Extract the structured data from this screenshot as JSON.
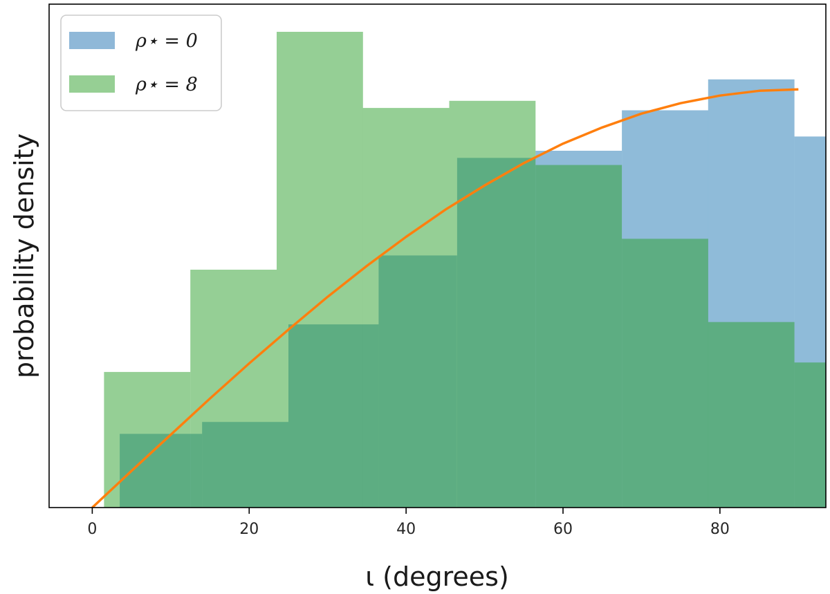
{
  "chart_data": {
    "type": "bar",
    "xlabel": "ι (degrees)",
    "ylabel": "probability density",
    "xlim": [
      -5.5,
      93.5
    ],
    "ylim": [
      0,
      1.0
    ],
    "xticks": [
      0,
      20,
      40,
      60,
      80
    ],
    "yticks_shown": false,
    "grid": false,
    "legend": {
      "placement": "top-left",
      "entries": [
        {
          "label": "ρ⋆ = 0",
          "color": "#8fb8d8"
        },
        {
          "label": "ρ⋆ = 8",
          "color": "#96cf94"
        }
      ]
    },
    "series": [
      {
        "name": "ρ⋆ = 0",
        "kind": "histogram",
        "color": "#1f77b4",
        "bins": [
          {
            "x0": 3.5,
            "x1": 14.0,
            "density": 0.155
          },
          {
            "x0": 14.0,
            "x1": 25.0,
            "density": 0.18
          },
          {
            "x0": 25.0,
            "x1": 36.5,
            "density": 0.385
          },
          {
            "x0": 36.5,
            "x1": 46.5,
            "density": 0.53
          },
          {
            "x0": 46.5,
            "x1": 56.5,
            "density": 0.735
          },
          {
            "x0": 56.5,
            "x1": 67.5,
            "density": 0.75
          },
          {
            "x0": 67.5,
            "x1": 78.5,
            "density": 0.835
          },
          {
            "x0": 78.5,
            "x1": 89.5,
            "density": 0.9
          },
          {
            "x0": 89.5,
            "x1": 100.5,
            "density": 0.78
          }
        ]
      },
      {
        "name": "ρ⋆ = 8",
        "kind": "histogram",
        "color": "#2ca02c",
        "bins": [
          {
            "x0": 1.5,
            "x1": 12.5,
            "density": 0.285
          },
          {
            "x0": 12.5,
            "x1": 23.5,
            "density": 0.5
          },
          {
            "x0": 23.5,
            "x1": 34.5,
            "density": 1.0
          },
          {
            "x0": 34.5,
            "x1": 45.5,
            "density": 0.84
          },
          {
            "x0": 45.5,
            "x1": 56.5,
            "density": 0.855
          },
          {
            "x0": 56.5,
            "x1": 67.5,
            "density": 0.72
          },
          {
            "x0": 67.5,
            "x1": 78.5,
            "density": 0.565
          },
          {
            "x0": 78.5,
            "x1": 89.5,
            "density": 0.39
          },
          {
            "x0": 89.5,
            "x1": 100.5,
            "density": 0.305
          }
        ]
      },
      {
        "name": "",
        "kind": "line",
        "color": "#ff7f0e",
        "x": [
          0,
          5,
          10,
          15,
          20,
          25,
          30,
          35,
          40,
          45,
          50,
          55,
          60,
          65,
          70,
          75,
          80,
          85,
          90
        ],
        "y": [
          0.0,
          0.077,
          0.153,
          0.229,
          0.303,
          0.374,
          0.443,
          0.508,
          0.569,
          0.626,
          0.677,
          0.724,
          0.765,
          0.799,
          0.828,
          0.85,
          0.866,
          0.876,
          0.879
        ]
      }
    ]
  }
}
